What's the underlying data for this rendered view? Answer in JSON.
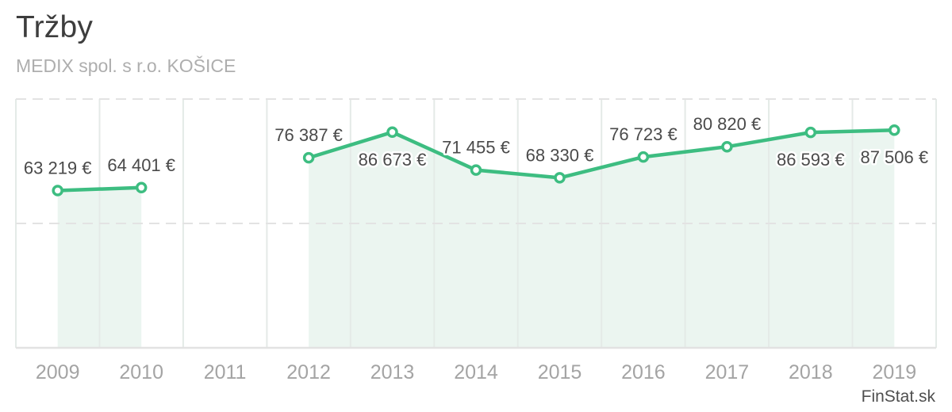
{
  "header": {
    "title": "Tržby",
    "subtitle": "MEDIX spol. s r.o. KOŠICE"
  },
  "watermark": {
    "label": "FinStat.sk"
  },
  "chart_data": {
    "type": "line",
    "title": "Tržby",
    "subtitle": "MEDIX spol. s r.o. KOŠICE",
    "categories": [
      "2009",
      "2010",
      "2011",
      "2012",
      "2013",
      "2014",
      "2015",
      "2016",
      "2017",
      "2018",
      "2019"
    ],
    "series": [
      {
        "name": "Tržby",
        "values": [
          63219,
          64401,
          null,
          76387,
          86673,
          71455,
          68330,
          76723,
          80820,
          86593,
          87506
        ]
      }
    ],
    "point_labels": [
      "63 219 €",
      "64 401 €",
      null,
      "76 387 €",
      "86 673 €",
      "71 455 €",
      "68 330 €",
      "76 723 €",
      "80 820 €",
      "86 593 €",
      "87 506 €"
    ],
    "label_placement": [
      "above",
      "above",
      null,
      "above",
      "below",
      "above",
      "above",
      "above",
      "above",
      "below",
      "below"
    ],
    "ylim": [
      0,
      100000
    ],
    "gridline_values": [
      0,
      50000,
      100000
    ],
    "grid_style": "dashed horizontal gridlines, solid vertical column separators, legend off",
    "colors": {
      "line": "#3dbd81",
      "area_fill": "#ebf5f0",
      "marker_fill": "#ffffff",
      "gridline": "#e3e3e3",
      "axis_bottom": "#e2e2e2",
      "separator": "#e4eae7",
      "value_label": "#4a4a4a",
      "year_label": "#a4a4a4",
      "title": "#3d3d3d",
      "subtitle": "#aeaeae"
    }
  }
}
